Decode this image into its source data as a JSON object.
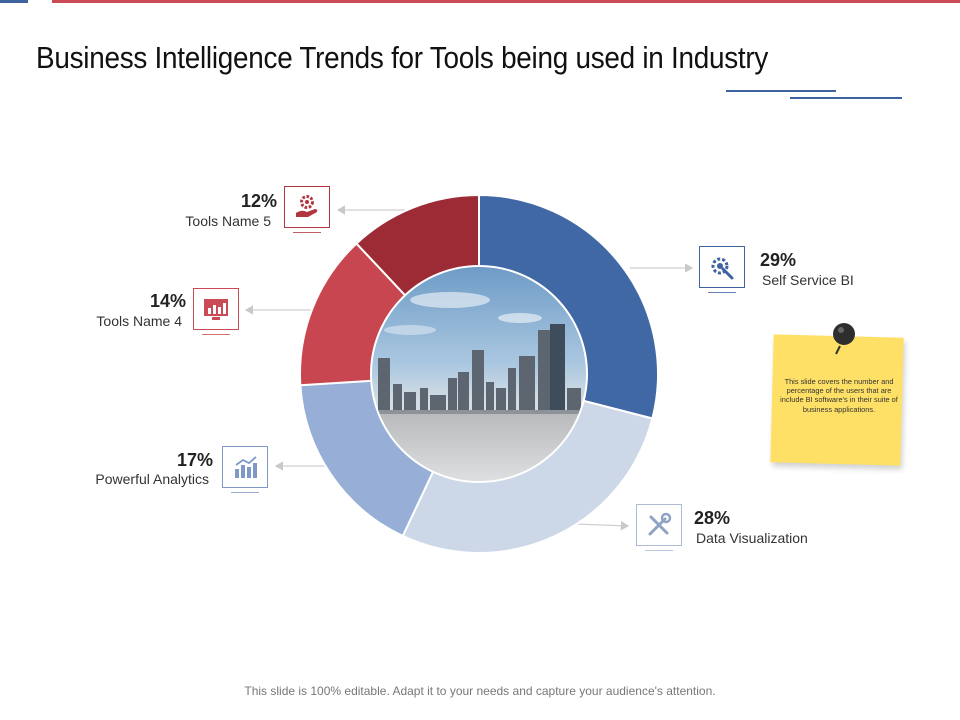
{
  "slide": {
    "title": "Business Intelligence Trends for Tools being used in Industry",
    "footer": "This slide is 100% editable. Adapt it to your needs and capture your audience's attention.",
    "note": "This slide covers the number and percentage of the users that are include BI software's in their suite of business applications."
  },
  "colors": {
    "accent_red": "#c84b55",
    "accent_blue": "#3f62a0",
    "note_yellow": "#ffe066"
  },
  "chart_data": {
    "type": "pie",
    "style": "donut",
    "unit": "%",
    "series": [
      {
        "name": "Self Service BI",
        "label": "29%",
        "value": 29,
        "color": "#4068a4",
        "icon": "gear-wrench-icon"
      },
      {
        "name": "Data Visualization",
        "label": "28%",
        "value": 28,
        "color": "#ccd8e8",
        "icon": "tools-icon"
      },
      {
        "name": "Powerful Analytics",
        "label": "17%",
        "value": 17,
        "color": "#97afd6",
        "icon": "bar-chart-icon"
      },
      {
        "name": "Tools Name 4",
        "label": "14%",
        "value": 14,
        "color": "#c8464f",
        "icon": "monitor-chart-icon"
      },
      {
        "name": "Tools Name 5",
        "label": "12%",
        "value": 12,
        "color": "#9c2b35",
        "icon": "hand-gear-icon"
      }
    ]
  }
}
